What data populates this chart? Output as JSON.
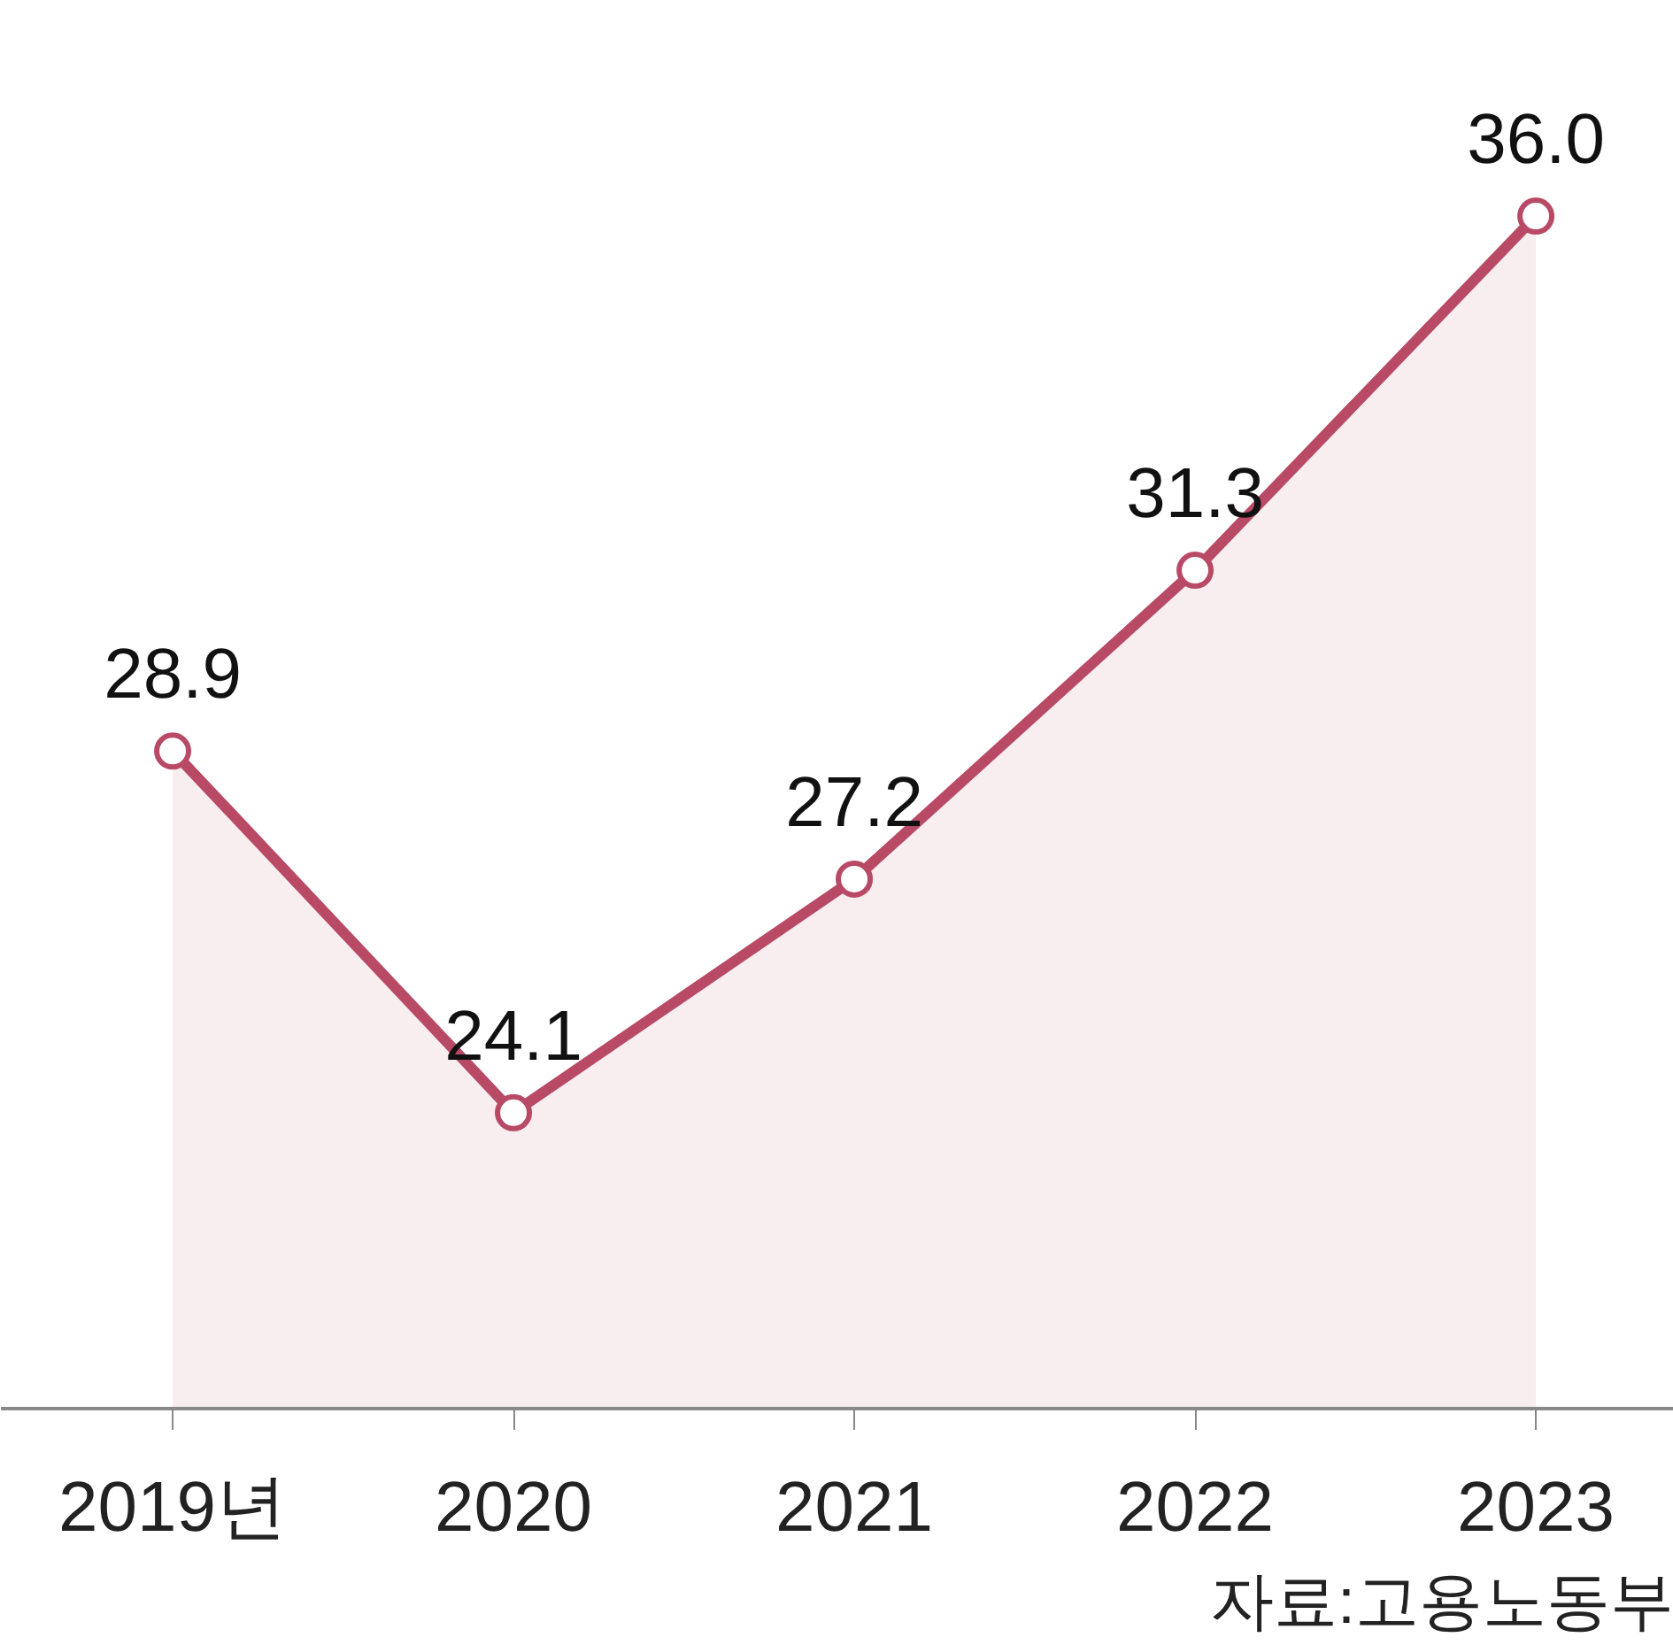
{
  "chart_data": {
    "type": "area",
    "categories": [
      "2019년",
      "2020",
      "2021",
      "2022",
      "2023"
    ],
    "series": [
      {
        "color": "#b84a66",
        "values": [
          28.9,
          24.1,
          27.2,
          31.3,
          36.0
        ],
        "value_labels": [
          "28.9",
          "24.1",
          "27.2",
          "31.3",
          "36.0"
        ]
      }
    ],
    "marker": "circle",
    "line_style": "solid",
    "annotations": [
      "자료:고용노동부"
    ]
  }
}
